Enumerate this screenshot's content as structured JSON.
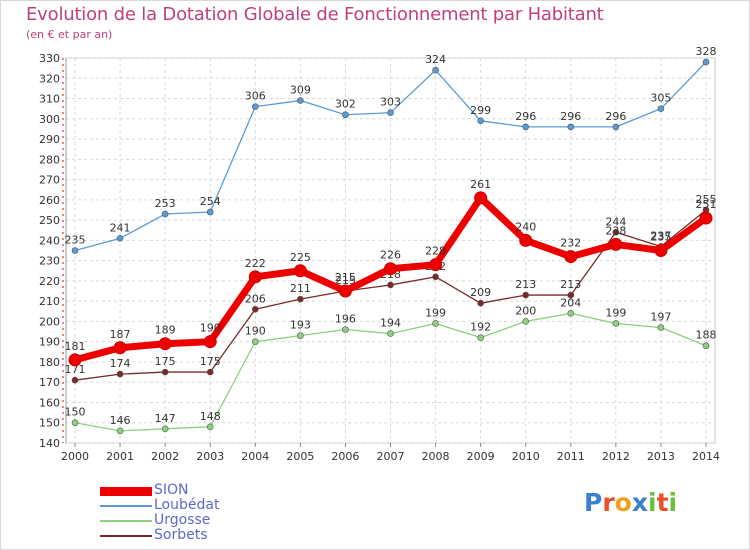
{
  "chart_data": {
    "type": "line",
    "title": "Evolution de la Dotation Globale de Fonctionnement par Habitant",
    "subtitle": "(en € et par an)",
    "xlabel": "",
    "ylabel": "",
    "x": [
      "2000",
      "2001",
      "2002",
      "2003",
      "2004",
      "2005",
      "2006",
      "2007",
      "2008",
      "2009",
      "2010",
      "2011",
      "2012",
      "2013",
      "2014"
    ],
    "ylim": [
      140,
      330
    ],
    "yticks": [
      140,
      150,
      160,
      170,
      180,
      190,
      200,
      210,
      220,
      230,
      240,
      250,
      260,
      270,
      280,
      290,
      300,
      310,
      320,
      330
    ],
    "grid": true,
    "legend_position": "bottom-left",
    "series": [
      {
        "name": "SION",
        "color": "#ee0000",
        "style": "thick",
        "values": [
          181,
          187,
          189,
          190,
          222,
          225,
          215,
          226,
          228,
          261,
          240,
          232,
          238,
          235,
          251
        ]
      },
      {
        "name": "Loubédat",
        "color": "#5b9bd5",
        "style": "thin",
        "values": [
          235,
          241,
          253,
          254,
          306,
          309,
          302,
          303,
          324,
          299,
          296,
          296,
          296,
          305,
          328
        ]
      },
      {
        "name": "Urgosse",
        "color": "#8cd17d",
        "style": "thin",
        "values": [
          150,
          146,
          147,
          148,
          190,
          193,
          196,
          194,
          199,
          192,
          200,
          204,
          199,
          197,
          188
        ]
      },
      {
        "name": "Sorbets",
        "color": "#7a2a2a",
        "style": "thin",
        "values": [
          171,
          174,
          175,
          175,
          206,
          211,
          215,
          218,
          222,
          209,
          213,
          213,
          244,
          237,
          255
        ]
      }
    ]
  },
  "logo": {
    "text": "Proxiti",
    "letters": [
      {
        "ch": "P",
        "color": "#3a7fd0"
      },
      {
        "ch": "r",
        "color": "#e8502a"
      },
      {
        "ch": "o",
        "color": "#f0a020"
      },
      {
        "ch": "x",
        "color": "#3a7fd0"
      },
      {
        "ch": "i",
        "color": "#6cbf3a"
      },
      {
        "ch": "t",
        "color": "#e8502a"
      },
      {
        "ch": "i",
        "color": "#6cbf3a"
      }
    ]
  }
}
